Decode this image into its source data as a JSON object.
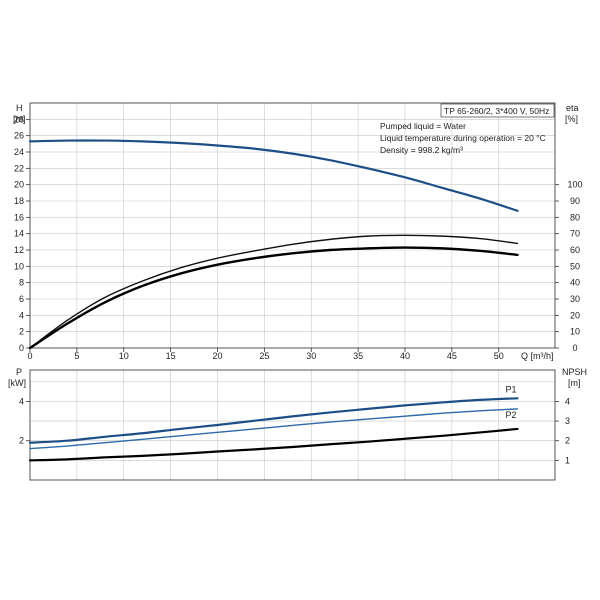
{
  "colors": {
    "head": "#1d4f86",
    "eta_upper": "#111111",
    "eta_lower": "#000000",
    "p1": "#1d4f86",
    "p2": "#2e6aa8",
    "npsh": "#000000",
    "grid": "#c8c8c8",
    "axis": "#333333",
    "frame": "#555555"
  },
  "chart_data": [
    {
      "type": "line",
      "title": "TP 65-260/2, 3*400 V, 50Hz",
      "info_lines": [
        "Pumped liquid = Water",
        "Liquid temperature during operation = 20 °C",
        "Density = 998.2 kg/m³"
      ],
      "xlabel": "Q [m³/h]",
      "ylabel_left": "H",
      "ylabel_left_unit": "[m]",
      "ylabel_right": "eta",
      "ylabel_right_unit": "[%]",
      "xlim": [
        0,
        56
      ],
      "xticks": [
        0,
        5,
        10,
        15,
        20,
        25,
        30,
        35,
        40,
        45,
        50
      ],
      "ylim_left": [
        0,
        30
      ],
      "yticks_left": [
        0,
        2,
        4,
        6,
        8,
        10,
        12,
        14,
        16,
        18,
        20,
        22,
        24,
        26,
        28
      ],
      "ylim_right": [
        0,
        150
      ],
      "yticks_right": [
        0,
        10,
        20,
        30,
        40,
        50,
        60,
        70,
        80,
        90,
        100
      ],
      "grid": true,
      "series": [
        {
          "name": "",
          "axis": "left",
          "color_key": "head",
          "x": [
            0,
            4,
            8,
            12,
            16,
            20,
            24,
            28,
            32,
            36,
            40,
            44,
            48,
            52
          ],
          "y": [
            25.3,
            25.4,
            25.4,
            25.3,
            25.1,
            24.8,
            24.4,
            23.8,
            23.0,
            22.0,
            20.9,
            19.6,
            18.3,
            16.8
          ]
        },
        {
          "name": "",
          "axis": "right",
          "color_key": "eta_upper",
          "x": [
            0,
            4,
            8,
            12,
            16,
            20,
            24,
            28,
            32,
            36,
            40,
            44,
            48,
            52
          ],
          "y": [
            0,
            17,
            31,
            41,
            49,
            55,
            59.5,
            63.5,
            66.5,
            68.5,
            69,
            68.5,
            67,
            64
          ]
        },
        {
          "name": "",
          "axis": "right",
          "color_key": "eta_lower",
          "x": [
            0,
            4,
            8,
            12,
            16,
            20,
            24,
            28,
            32,
            36,
            40,
            44,
            48,
            52
          ],
          "y": [
            0,
            15,
            28,
            38,
            45.5,
            51,
            55,
            58,
            60,
            61,
            61.5,
            61,
            59.5,
            57
          ]
        }
      ]
    },
    {
      "type": "line",
      "title": "",
      "xlabel": "",
      "ylabel_left": "P",
      "ylabel_left_unit": "[kW]",
      "ylabel_right": "NPSH",
      "ylabel_right_unit": "[m]",
      "xlim": [
        0,
        56
      ],
      "ylim_left": [
        0,
        5.6
      ],
      "yticks_left": [
        2,
        4
      ],
      "ylim_right": [
        0,
        5.6
      ],
      "yticks_right": [
        1,
        2,
        3,
        4
      ],
      "grid": true,
      "series": [
        {
          "name": "P1",
          "axis": "left",
          "color_key": "p1",
          "x": [
            0,
            4,
            8,
            12,
            16,
            20,
            24,
            28,
            32,
            36,
            40,
            44,
            48,
            52
          ],
          "y": [
            1.9,
            2.0,
            2.2,
            2.38,
            2.6,
            2.8,
            3.02,
            3.24,
            3.44,
            3.62,
            3.8,
            3.95,
            4.08,
            4.16
          ]
        },
        {
          "name": "P2",
          "axis": "left",
          "color_key": "p2",
          "x": [
            0,
            4,
            8,
            12,
            16,
            20,
            24,
            28,
            32,
            36,
            40,
            44,
            48,
            52
          ],
          "y": [
            1.6,
            1.73,
            1.9,
            2.07,
            2.25,
            2.43,
            2.6,
            2.78,
            2.95,
            3.1,
            3.25,
            3.4,
            3.52,
            3.62
          ]
        },
        {
          "name": "",
          "axis": "right",
          "color_key": "npsh",
          "x": [
            0,
            4,
            8,
            12,
            16,
            20,
            24,
            28,
            32,
            36,
            40,
            44,
            48,
            52
          ],
          "y": [
            1.0,
            1.05,
            1.15,
            1.23,
            1.33,
            1.45,
            1.56,
            1.68,
            1.82,
            1.95,
            2.1,
            2.25,
            2.42,
            2.6
          ]
        }
      ]
    }
  ]
}
